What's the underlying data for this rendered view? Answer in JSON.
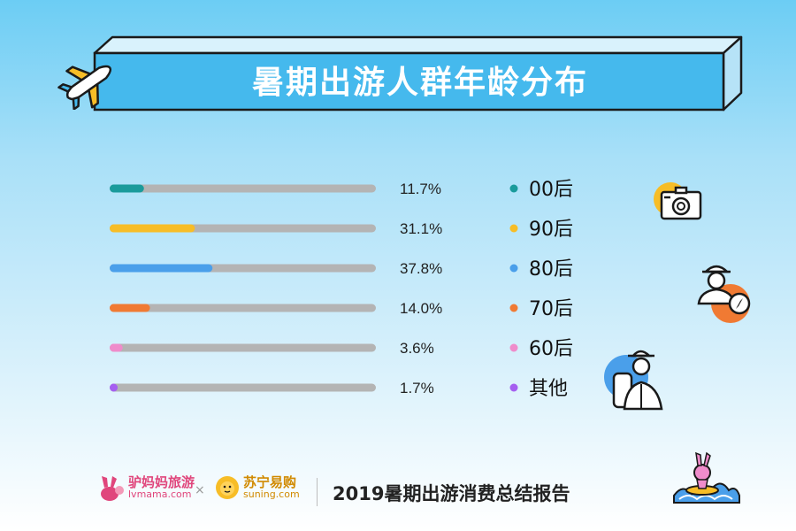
{
  "title": "暑期出游人群年龄分布",
  "chart_data": {
    "type": "bar",
    "orientation": "horizontal",
    "title": "暑期出游人群年龄分布",
    "unit": "%",
    "xlim": [
      0,
      100
    ],
    "categories": [
      "00后",
      "90后",
      "80后",
      "70后",
      "60后",
      "其他"
    ],
    "values": [
      11.7,
      31.1,
      37.8,
      14.0,
      3.6,
      1.7
    ],
    "value_labels": [
      "11.7%",
      "31.1%",
      "37.8%",
      "14.0%",
      "3.6%",
      "1.7%"
    ],
    "colors": [
      "#1a9b9b",
      "#f7bd27",
      "#4a9fea",
      "#f07a33",
      "#ef8ccb",
      "#a55ff0"
    ],
    "track_color": "#b4b4b4",
    "grid": false,
    "legend": "right"
  },
  "footer": {
    "brand1_name": "驴妈妈旅游",
    "brand1_domain": "lvmama.com",
    "separator": "×",
    "brand2_name": "苏宁易购",
    "brand2_domain": "suning.com",
    "report_title": "2019暑期出游消费总结报告"
  },
  "icons": [
    "airplane-icon",
    "camera-icon",
    "traveler-compass-icon",
    "explorer-backpack-icon",
    "rabbit-surfing-icon",
    "rabbit-logo-icon",
    "lion-logo-icon"
  ]
}
